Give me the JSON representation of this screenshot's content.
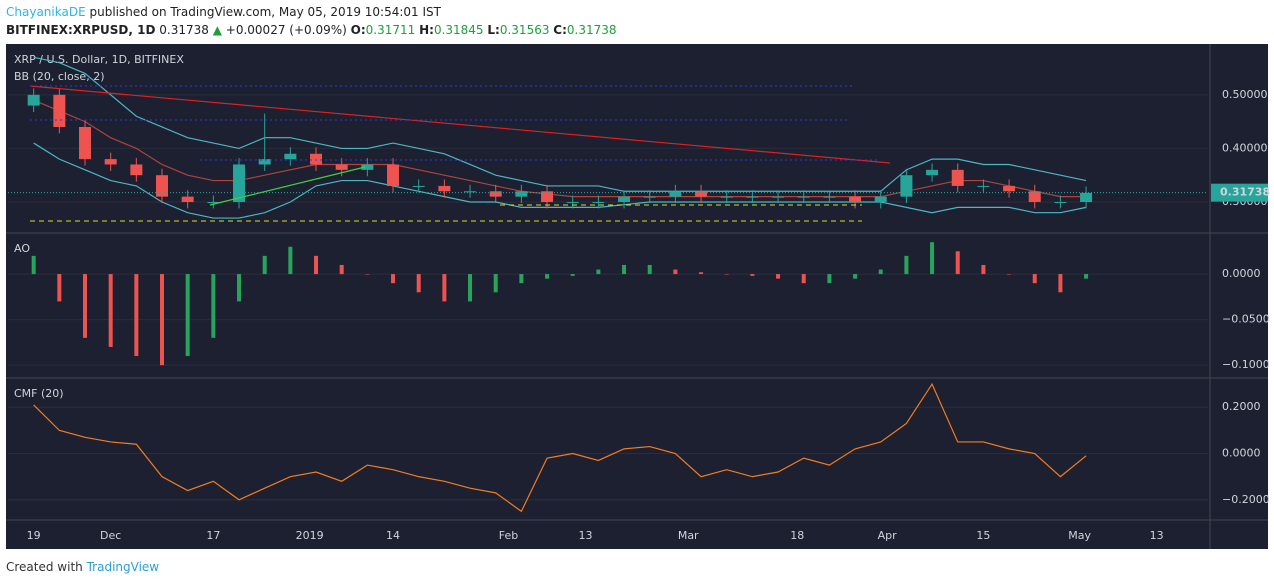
{
  "header": {
    "author": "ChayanikaDE",
    "published": "published on TradingView.com, May 05, 2019 10:54:01 IST",
    "symbol": "BITFINEX:XRPUSD, 1D",
    "price": "0.31738",
    "arrow": "▲",
    "change": "+0.00027 (+0.09%)",
    "o_label": "O:",
    "o": "0.31711",
    "h_label": "H:",
    "h": "0.31845",
    "l_label": "L:",
    "l": "0.31563",
    "c_label": "C:",
    "c": "0.31738"
  },
  "footer": {
    "created": "Created with",
    "brand": "TradingView"
  },
  "chart_data": [
    {
      "type": "candlestick",
      "title": "XRP / U.S. Dollar, 1D, BITFINEX",
      "subtitle": "BB (20, close, 2)",
      "x": [
        0,
        4,
        8,
        12,
        16,
        20,
        24,
        28,
        32,
        36,
        40,
        44,
        48,
        52,
        56,
        60,
        64,
        68,
        72,
        76,
        80,
        84,
        88,
        92,
        96,
        100,
        104,
        108,
        112,
        116,
        120,
        124,
        128,
        132,
        136,
        140,
        144,
        148,
        152,
        156,
        160,
        164
      ],
      "open": [
        0.48,
        0.5,
        0.44,
        0.38,
        0.37,
        0.35,
        0.31,
        0.3,
        0.3,
        0.37,
        0.38,
        0.39,
        0.37,
        0.36,
        0.37,
        0.33,
        0.33,
        0.32,
        0.32,
        0.31,
        0.32,
        0.3,
        0.3,
        0.3,
        0.31,
        0.31,
        0.32,
        0.31,
        0.31,
        0.31,
        0.31,
        0.31,
        0.31,
        0.3,
        0.31,
        0.35,
        0.36,
        0.33,
        0.33,
        0.32,
        0.3,
        0.3
      ],
      "high": [
        0.512,
        0.512,
        0.452,
        0.392,
        0.382,
        0.362,
        0.322,
        0.312,
        0.382,
        0.465,
        0.402,
        0.402,
        0.382,
        0.382,
        0.382,
        0.342,
        0.342,
        0.332,
        0.332,
        0.332,
        0.332,
        0.312,
        0.312,
        0.322,
        0.322,
        0.332,
        0.332,
        0.322,
        0.322,
        0.322,
        0.322,
        0.322,
        0.322,
        0.322,
        0.362,
        0.372,
        0.372,
        0.342,
        0.342,
        0.332,
        0.312,
        0.329
      ],
      "low": [
        0.468,
        0.428,
        0.368,
        0.358,
        0.338,
        0.298,
        0.288,
        0.288,
        0.288,
        0.358,
        0.368,
        0.358,
        0.348,
        0.348,
        0.318,
        0.318,
        0.308,
        0.308,
        0.298,
        0.298,
        0.288,
        0.288,
        0.288,
        0.288,
        0.298,
        0.298,
        0.298,
        0.298,
        0.298,
        0.298,
        0.298,
        0.298,
        0.288,
        0.288,
        0.298,
        0.338,
        0.318,
        0.318,
        0.308,
        0.288,
        0.288,
        0.288
      ],
      "close": [
        0.5,
        0.44,
        0.38,
        0.37,
        0.35,
        0.31,
        0.3,
        0.3,
        0.37,
        0.38,
        0.39,
        0.37,
        0.36,
        0.37,
        0.33,
        0.33,
        0.32,
        0.32,
        0.31,
        0.32,
        0.3,
        0.3,
        0.3,
        0.31,
        0.31,
        0.32,
        0.31,
        0.31,
        0.31,
        0.31,
        0.31,
        0.31,
        0.3,
        0.31,
        0.35,
        0.36,
        0.33,
        0.33,
        0.32,
        0.3,
        0.3,
        0.317
      ],
      "bands": {
        "upper": [
          0.57,
          0.56,
          0.54,
          0.5,
          0.46,
          0.44,
          0.42,
          0.41,
          0.4,
          0.42,
          0.42,
          0.41,
          0.4,
          0.4,
          0.41,
          0.4,
          0.39,
          0.37,
          0.35,
          0.34,
          0.33,
          0.33,
          0.33,
          0.32,
          0.32,
          0.32,
          0.32,
          0.32,
          0.32,
          0.32,
          0.32,
          0.32,
          0.32,
          0.32,
          0.36,
          0.38,
          0.38,
          0.37,
          0.37,
          0.36,
          0.35,
          0.34
        ],
        "basis": [
          0.49,
          0.47,
          0.45,
          0.42,
          0.4,
          0.37,
          0.35,
          0.34,
          0.34,
          0.35,
          0.36,
          0.37,
          0.37,
          0.37,
          0.37,
          0.36,
          0.35,
          0.34,
          0.33,
          0.32,
          0.315,
          0.31,
          0.31,
          0.31,
          0.31,
          0.31,
          0.31,
          0.31,
          0.31,
          0.31,
          0.31,
          0.31,
          0.31,
          0.31,
          0.32,
          0.33,
          0.34,
          0.34,
          0.33,
          0.32,
          0.31,
          0.31
        ],
        "lower": [
          0.41,
          0.38,
          0.36,
          0.34,
          0.33,
          0.3,
          0.28,
          0.27,
          0.27,
          0.28,
          0.3,
          0.33,
          0.34,
          0.34,
          0.33,
          0.32,
          0.31,
          0.3,
          0.3,
          0.29,
          0.29,
          0.29,
          0.29,
          0.295,
          0.3,
          0.3,
          0.3,
          0.3,
          0.3,
          0.3,
          0.3,
          0.3,
          0.3,
          0.3,
          0.29,
          0.28,
          0.29,
          0.29,
          0.29,
          0.28,
          0.28,
          0.29
        ],
        "band_color": "#4db6c6",
        "basis_color": "#b0443d"
      },
      "up_color": "#26a69a",
      "down_color": "#ef5350",
      "last_price": 0.31738,
      "xlim": [
        -4,
        183
      ],
      "ylim": [
        0.244,
        0.593
      ],
      "yticks": [
        {
          "value": 0.3,
          "label": "0.30000"
        },
        {
          "value": 0.4,
          "label": "0.40000"
        },
        {
          "value": 0.5,
          "label": "0.50000"
        }
      ]
    },
    {
      "type": "bar",
      "title": "AO",
      "x": [
        0,
        4,
        8,
        12,
        16,
        20,
        24,
        28,
        32,
        36,
        40,
        44,
        48,
        52,
        56,
        60,
        64,
        68,
        72,
        76,
        80,
        84,
        88,
        92,
        96,
        100,
        104,
        108,
        112,
        116,
        120,
        124,
        128,
        132,
        136,
        140,
        144,
        148,
        152,
        156,
        160,
        164
      ],
      "values": [
        0.02,
        -0.03,
        -0.07,
        -0.08,
        -0.09,
        -0.1,
        -0.09,
        -0.07,
        -0.03,
        0.02,
        0.03,
        0.02,
        0.01,
        0,
        -0.01,
        -0.02,
        -0.03,
        -0.03,
        -0.02,
        -0.01,
        -0.005,
        -0.002,
        0.005,
        0.01,
        0.01,
        0.005,
        0.002,
        0,
        -0.002,
        -0.005,
        -0.01,
        -0.01,
        -0.005,
        0.005,
        0.02,
        0.035,
        0.025,
        0.01,
        0,
        -0.01,
        -0.02,
        -0.005
      ],
      "up_color": "#26a65a",
      "down_color": "#ef5350",
      "xlim": [
        -4,
        183
      ],
      "ylim": [
        -0.113,
        0.044
      ],
      "yticks": [
        {
          "value": -0.1,
          "label": "−0.1000"
        },
        {
          "value": -0.05,
          "label": "−0.0500"
        },
        {
          "value": 0,
          "label": "0.0000"
        }
      ]
    },
    {
      "type": "line",
      "title": "CMF (20)",
      "x": [
        0,
        4,
        8,
        12,
        16,
        20,
        24,
        28,
        32,
        36,
        40,
        44,
        48,
        52,
        56,
        60,
        64,
        68,
        72,
        76,
        80,
        84,
        88,
        92,
        96,
        100,
        104,
        108,
        112,
        116,
        120,
        124,
        128,
        132,
        136,
        140,
        144,
        148,
        152,
        156,
        160,
        164
      ],
      "values": [
        0.21,
        0.1,
        0.07,
        0.05,
        0.04,
        -0.1,
        -0.16,
        -0.12,
        -0.2,
        -0.15,
        -0.1,
        -0.08,
        -0.12,
        -0.05,
        -0.07,
        -0.1,
        -0.12,
        -0.15,
        -0.17,
        -0.25,
        -0.02,
        0,
        -0.03,
        0.02,
        0.03,
        0,
        -0.1,
        -0.07,
        -0.1,
        -0.08,
        -0.02,
        -0.05,
        0.02,
        0.05,
        0.13,
        0.3,
        0.05,
        0.05,
        0.02,
        0,
        -0.1,
        -0.01
      ],
      "color": "#f57c1f",
      "xlim": [
        -4,
        183
      ],
      "ylim": [
        -0.283,
        0.322
      ],
      "yticks": [
        {
          "value": -0.2,
          "label": "−0.2000"
        },
        {
          "value": 0,
          "label": "0.0000"
        },
        {
          "value": 0.2,
          "label": "0.2000"
        }
      ],
      "xticks": [
        {
          "value": 0,
          "label": "19"
        },
        {
          "value": 12,
          "label": "Dec"
        },
        {
          "value": 28,
          "label": "17"
        },
        {
          "value": 43,
          "label": "2019"
        },
        {
          "value": 56,
          "label": "14"
        },
        {
          "value": 74,
          "label": "Feb"
        },
        {
          "value": 86,
          "label": "13"
        },
        {
          "value": 102,
          "label": "Mar"
        },
        {
          "value": 119,
          "label": "18"
        },
        {
          "value": 133,
          "label": "Apr"
        },
        {
          "value": 148,
          "label": "15"
        },
        {
          "value": 163,
          "label": "May"
        },
        {
          "value": 175,
          "label": "13"
        }
      ]
    }
  ]
}
